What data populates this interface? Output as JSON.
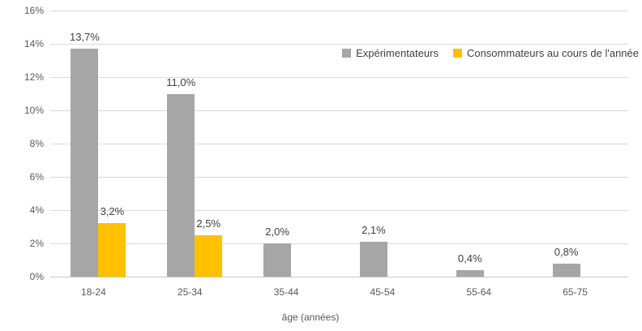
{
  "chart_data": {
    "type": "bar",
    "title": "",
    "categories": [
      "18-24",
      "25-34",
      "35-44",
      "45-54",
      "55-64",
      "65-75"
    ],
    "series": [
      {
        "name": "Expérimentateurs",
        "color": "#a6a6a6",
        "values": [
          13.7,
          11.0,
          2.0,
          2.1,
          0.4,
          0.8
        ],
        "labels": [
          "13,7%",
          "11,0%",
          "2,0%",
          "2,1%",
          "0,4%",
          "0,8%"
        ]
      },
      {
        "name": "Consommateurs au cours de l'année",
        "color": "#ffc000",
        "values": [
          3.2,
          2.5,
          null,
          null,
          null,
          null
        ],
        "labels": [
          "3,2%",
          "2,5%",
          null,
          null,
          null,
          null
        ]
      }
    ],
    "xlabel": "âge (années)",
    "ylabel": "",
    "ylim": [
      0,
      16
    ],
    "ytick_step": 2,
    "ytick_labels": [
      "0%",
      "2%",
      "4%",
      "6%",
      "8%",
      "10%",
      "12%",
      "14%",
      "16%"
    ],
    "grid": true,
    "legend_position": "top-right"
  },
  "colors": {
    "background": "#ffffff",
    "gridline": "#d9d9d9",
    "axis_line": "#c8c8c8",
    "tick_text": "#595959",
    "data_label_text": "#3f3f3f",
    "legend_text": "#404040",
    "series_gray": "#a6a6a6",
    "series_yellow": "#ffc000"
  }
}
